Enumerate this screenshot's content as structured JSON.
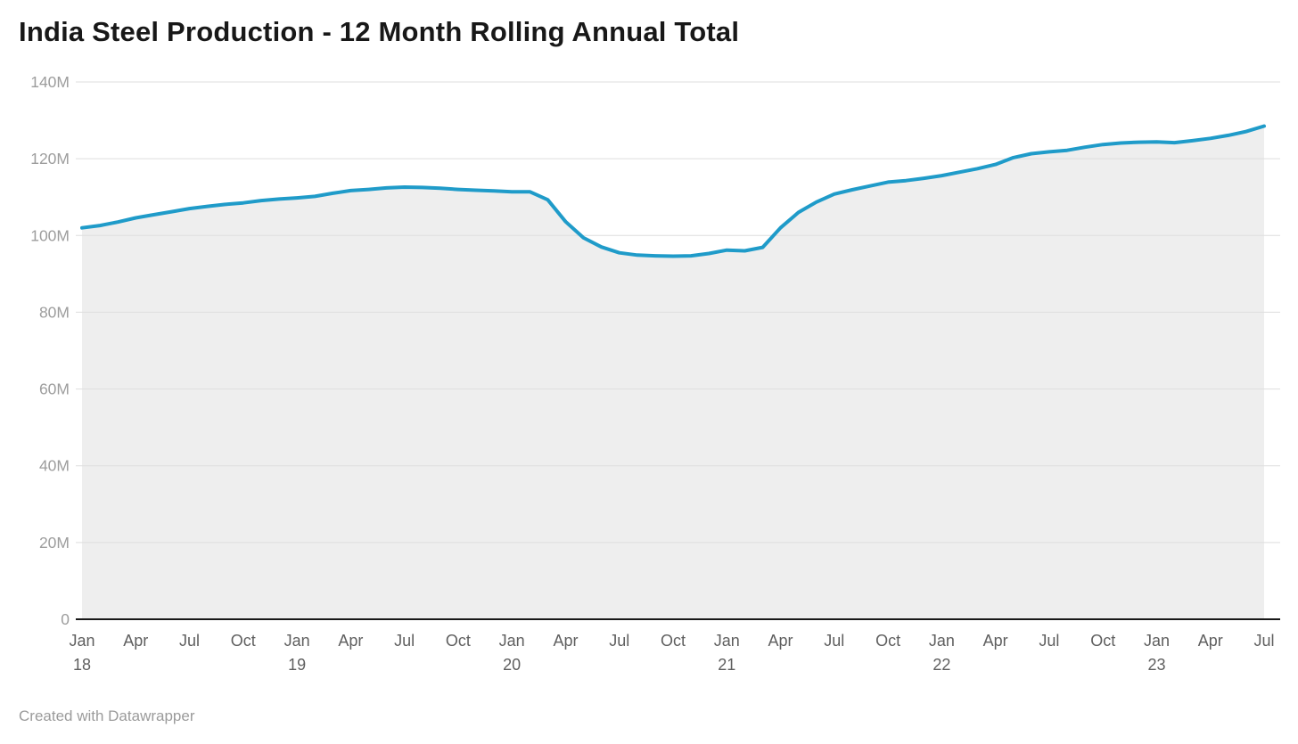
{
  "header": {
    "title": "India Steel Production - 12 Month Rolling Annual Total"
  },
  "footer": {
    "credit": "Created with Datawrapper"
  },
  "colors": {
    "line": "#1f9bc9",
    "area_fill": "#eeeeee",
    "gridline": "#dedede",
    "axis_baseline": "#181818",
    "y_label": "#9d9d9d",
    "x_label": "#5f5f5f",
    "title": "#181818",
    "credit": "#9b9b9b",
    "background": "#ffffff"
  },
  "chart_data": {
    "type": "area",
    "title": "India Steel Production - 12 Month Rolling Annual Total",
    "xlabel": "",
    "ylabel": "",
    "ylim": [
      0,
      140
    ],
    "grid": true,
    "legend": "none",
    "tick_every_months": 3,
    "y_ticks": [
      {
        "value": 0,
        "label": "0"
      },
      {
        "value": 20,
        "label": "20M"
      },
      {
        "value": 40,
        "label": "40M"
      },
      {
        "value": 60,
        "label": "60M"
      },
      {
        "value": 80,
        "label": "80M"
      },
      {
        "value": 100,
        "label": "100M"
      },
      {
        "value": 120,
        "label": "120M"
      },
      {
        "value": 140,
        "label": "140M"
      }
    ],
    "x": [
      "Jan 18",
      "Feb 18",
      "Mar 18",
      "Apr 18",
      "May 18",
      "Jun 18",
      "Jul 18",
      "Aug 18",
      "Sep 18",
      "Oct 18",
      "Nov 18",
      "Dec 18",
      "Jan 19",
      "Feb 19",
      "Mar 19",
      "Apr 19",
      "May 19",
      "Jun 19",
      "Jul 19",
      "Aug 19",
      "Sep 19",
      "Oct 19",
      "Nov 19",
      "Dec 19",
      "Jan 20",
      "Feb 20",
      "Mar 20",
      "Apr 20",
      "May 20",
      "Jun 20",
      "Jul 20",
      "Aug 20",
      "Sep 20",
      "Oct 20",
      "Nov 20",
      "Dec 20",
      "Jan 21",
      "Feb 21",
      "Mar 21",
      "Apr 21",
      "May 21",
      "Jun 21",
      "Jul 21",
      "Aug 21",
      "Sep 21",
      "Oct 21",
      "Nov 21",
      "Dec 21",
      "Jan 22",
      "Feb 22",
      "Mar 22",
      "Apr 22",
      "May 22",
      "Jun 22",
      "Jul 22",
      "Aug 22",
      "Sep 22",
      "Oct 22",
      "Nov 22",
      "Dec 22",
      "Jan 23",
      "Feb 23",
      "Mar 23",
      "Apr 23",
      "May 23",
      "Jun 23",
      "Jul 23"
    ],
    "values": [
      102.0,
      102.6,
      103.5,
      104.6,
      105.4,
      106.2,
      107.0,
      107.6,
      108.1,
      108.5,
      109.1,
      109.5,
      109.8,
      110.2,
      111.0,
      111.7,
      112.0,
      112.4,
      112.6,
      112.5,
      112.3,
      112.0,
      111.8,
      111.6,
      111.4,
      111.4,
      109.3,
      103.6,
      99.4,
      97.0,
      95.5,
      94.9,
      94.7,
      94.6,
      94.7,
      95.3,
      96.2,
      96.0,
      96.9,
      102.0,
      106.0,
      108.7,
      110.8,
      111.9,
      112.9,
      113.9,
      114.3,
      114.9,
      115.6,
      116.5,
      117.4,
      118.5,
      120.3,
      121.3,
      121.8,
      122.2,
      123.0,
      123.7,
      124.1,
      124.3,
      124.4,
      124.2,
      124.7,
      125.3,
      126.1,
      127.1,
      128.5
    ]
  }
}
